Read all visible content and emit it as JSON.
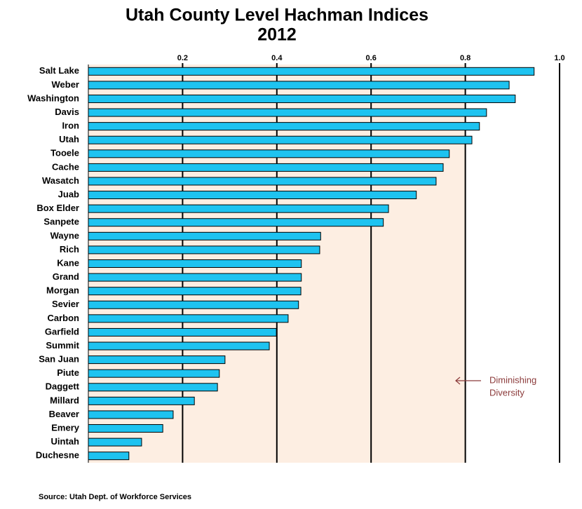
{
  "chart_data": {
    "type": "hbar",
    "title": "Utah County Level Hachman Indices",
    "subtitle": "2012",
    "source": "Source: Utah Dept. of Workforce Services",
    "annotation": [
      "Diminishing",
      "Diversity"
    ],
    "categories": [
      "Salt Lake",
      "Weber",
      "Washington",
      "Davis",
      "Iron",
      "Utah",
      "Tooele",
      "Cache",
      "Wasatch",
      "Juab",
      "Box Elder",
      "Sanpete",
      "Wayne",
      "Rich",
      "Kane",
      "Grand",
      "Morgan",
      "Sevier",
      "Carbon",
      "Garfield",
      "Summit",
      "San Juan",
      "Piute",
      "Daggett",
      "Millard",
      "Beaver",
      "Emery",
      "Uintah",
      "Duchesne"
    ],
    "values": [
      0.946,
      0.893,
      0.906,
      0.845,
      0.83,
      0.814,
      0.766,
      0.753,
      0.738,
      0.696,
      0.637,
      0.626,
      0.493,
      0.491,
      0.452,
      0.452,
      0.451,
      0.446,
      0.424,
      0.399,
      0.384,
      0.29,
      0.278,
      0.274,
      0.225,
      0.18,
      0.158,
      0.113,
      0.086
    ],
    "color": "#1ec3f0",
    "shaded_range": [
      0,
      0.8
    ],
    "shade_color": "#fdeee2",
    "xlim": [
      0,
      1
    ],
    "xticks": [
      0.2,
      0.4,
      0.6,
      0.8,
      {
        "value": 1,
        "label": "1.0"
      }
    ],
    "grid": true
  }
}
